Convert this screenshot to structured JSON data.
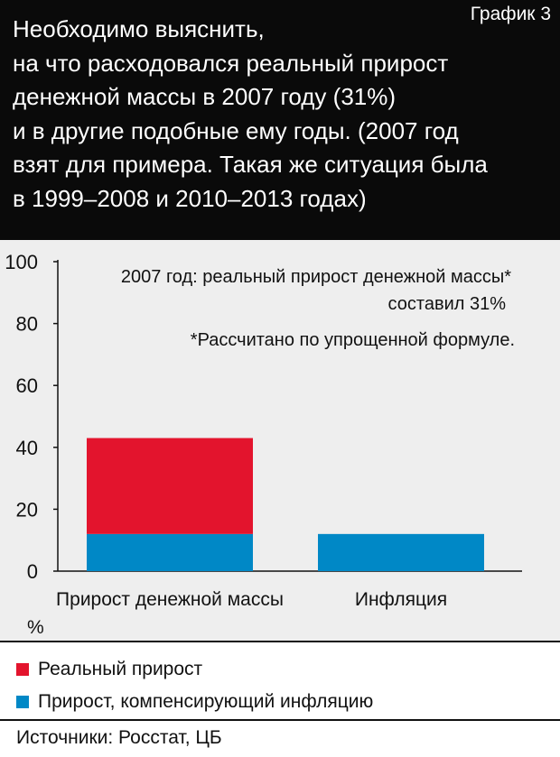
{
  "header": {
    "chart_label": "График 3",
    "title": "Необходимо выяснить,\nна что расходовался реальный прирост\nденежной массы в 2007 году (31%)\nи в другие подобные ему годы. (2007 год\nвзят для примера. Такая же ситуация была\nв 1999–2008 и 2010–2013 годах)"
  },
  "notes": {
    "line1": "2007 год: реальный прирост денежной массы*",
    "line2": "составил 31%",
    "footnote": "*Рассчитано по упрощенной формуле."
  },
  "legend": {
    "real": "Реальный прирост",
    "inflation": "Прирост, компенсирующий инфляцию"
  },
  "source": "Источники: Росстат, ЦБ",
  "colors": {
    "real": "#e3142d",
    "inflation": "#0088c6",
    "background": "#eeeeee",
    "header": "#0a0a0a"
  },
  "chart_data": {
    "type": "bar",
    "stacked": true,
    "categories": [
      "Прирост денежной массы",
      "Инфляция"
    ],
    "series": [
      {
        "name": "Прирост, компенсирующий инфляцию",
        "values": [
          12,
          12
        ]
      },
      {
        "name": "Реальный прирост",
        "values": [
          31,
          0
        ]
      }
    ],
    "ylabel": "%",
    "ylim": [
      0,
      100
    ],
    "yticks": [
      0,
      20,
      40,
      60,
      80,
      100
    ],
    "grid": false
  }
}
